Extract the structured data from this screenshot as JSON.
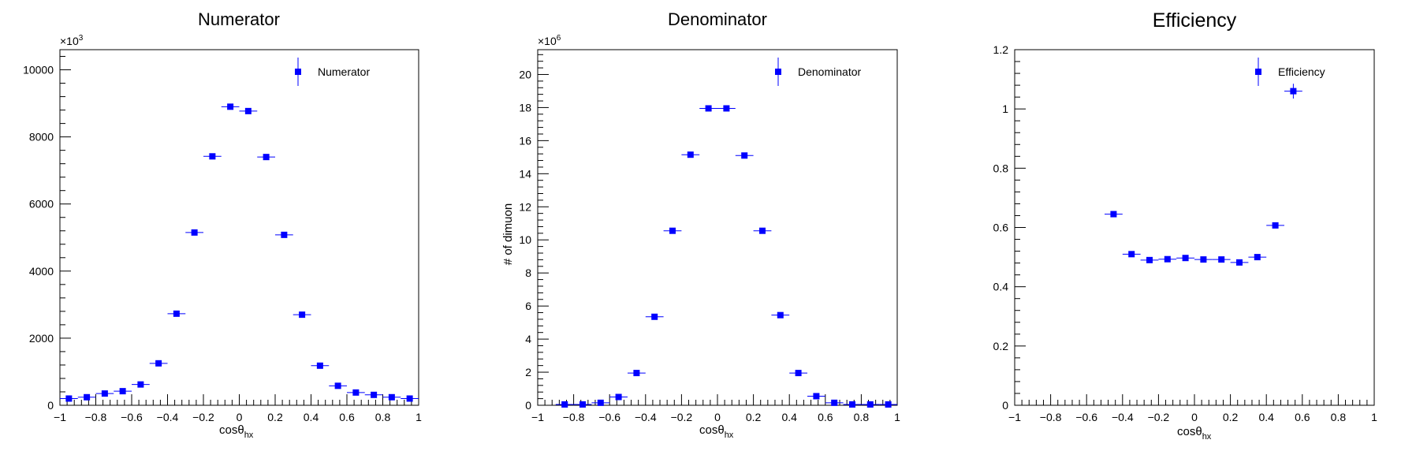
{
  "chart_data": [
    {
      "type": "scatter",
      "title": "Numerator",
      "xlabel": "cosθ",
      "xlabel_sub": "hx",
      "ylabel": "",
      "y_multiplier": "×10",
      "y_multiplier_exp": "3",
      "xlim": [
        -1,
        1
      ],
      "ylim": [
        0,
        10600
      ],
      "xticks": [
        -1,
        -0.8,
        -0.6,
        -0.4,
        -0.2,
        0,
        0.2,
        0.4,
        0.6,
        0.8,
        1
      ],
      "xtick_labels": [
        "−1",
        "−0.8",
        "−0.6",
        "−0.4",
        "−0.2",
        "0",
        "0.2",
        "0.4",
        "0.6",
        "0.8",
        "1"
      ],
      "yticks": [
        0,
        2000,
        4000,
        6000,
        8000,
        10000
      ],
      "ytick_labels": [
        "0",
        "2000",
        "4000",
        "6000",
        "8000",
        "10000"
      ],
      "legend": {
        "label": "Numerator",
        "position": "top-right"
      },
      "bin_half_width": 0.05,
      "series": [
        {
          "name": "Numerator",
          "color": "#0000ff",
          "x": [
            -0.95,
            -0.85,
            -0.75,
            -0.65,
            -0.55,
            -0.45,
            -0.35,
            -0.25,
            -0.15,
            -0.05,
            0.05,
            0.15,
            0.25,
            0.35,
            0.45,
            0.55,
            0.65,
            0.75,
            0.85,
            0.95
          ],
          "y": [
            200,
            240,
            350,
            420,
            620,
            1250,
            2730,
            5150,
            7420,
            8900,
            8770,
            7400,
            5080,
            2700,
            1180,
            580,
            380,
            310,
            240,
            200
          ]
        }
      ]
    },
    {
      "type": "scatter",
      "title": "Denominator",
      "xlabel": "cosθ",
      "xlabel_sub": "hx",
      "ylabel": "# of dimuon",
      "y_multiplier": "×10",
      "y_multiplier_exp": "6",
      "xlim": [
        -1,
        1
      ],
      "ylim": [
        0,
        21.5
      ],
      "xticks": [
        -1,
        -0.8,
        -0.6,
        -0.4,
        -0.2,
        0,
        0.2,
        0.4,
        0.6,
        0.8,
        1
      ],
      "xtick_labels": [
        "−1",
        "−0.8",
        "−0.6",
        "−0.4",
        "−0.2",
        "0",
        "0.2",
        "0.4",
        "0.6",
        "0.8",
        "1"
      ],
      "yticks": [
        0,
        2,
        4,
        6,
        8,
        10,
        12,
        14,
        16,
        18,
        20
      ],
      "ytick_labels": [
        "0",
        "2",
        "4",
        "6",
        "8",
        "10",
        "12",
        "14",
        "16",
        "18",
        "20"
      ],
      "legend": {
        "label": "Denominator",
        "position": "top-right"
      },
      "bin_half_width": 0.05,
      "series": [
        {
          "name": "Denominator",
          "color": "#0000ff",
          "x": [
            -0.85,
            -0.75,
            -0.65,
            -0.55,
            -0.45,
            -0.35,
            -0.25,
            -0.15,
            -0.05,
            0.05,
            0.15,
            0.25,
            0.35,
            0.45,
            0.55,
            0.65,
            0.75,
            0.85,
            0.95
          ],
          "y": [
            0.05,
            0.05,
            0.15,
            0.5,
            1.95,
            5.35,
            10.55,
            15.15,
            17.95,
            17.95,
            15.1,
            10.55,
            5.45,
            1.95,
            0.55,
            0.15,
            0.05,
            0.05,
            0.05
          ]
        }
      ]
    },
    {
      "type": "scatter",
      "title": "Efficiency",
      "xlabel": "cosθ",
      "xlabel_sub": "hx",
      "ylabel": "",
      "y_multiplier": "",
      "y_multiplier_exp": "",
      "xlim": [
        -1,
        1
      ],
      "ylim": [
        0,
        1.2
      ],
      "xticks": [
        -1,
        -0.8,
        -0.6,
        -0.4,
        -0.2,
        0,
        0.2,
        0.4,
        0.6,
        0.8,
        1
      ],
      "xtick_labels": [
        "−1",
        "−0.8",
        "−0.6",
        "−0.4",
        "−0.2",
        "0",
        "0.2",
        "0.4",
        "0.6",
        "0.8",
        "1"
      ],
      "yticks": [
        0,
        0.2,
        0.4,
        0.6,
        0.8,
        1,
        1.2
      ],
      "ytick_labels": [
        "0",
        "0.2",
        "0.4",
        "0.6",
        "0.8",
        "1",
        "1.2"
      ],
      "legend": {
        "label": "Efficiency",
        "position": "top-right"
      },
      "bin_half_width": 0.05,
      "series": [
        {
          "name": "Efficiency",
          "color": "#0000ff",
          "x": [
            -0.45,
            -0.35,
            -0.25,
            -0.15,
            -0.05,
            0.05,
            0.15,
            0.25,
            0.35,
            0.45,
            0.55
          ],
          "y": [
            0.645,
            0.51,
            0.49,
            0.493,
            0.497,
            0.492,
            0.492,
            0.482,
            0.5,
            0.607,
            1.06
          ],
          "y_err": [
            0.006,
            0.006,
            0.006,
            0.006,
            0.006,
            0.006,
            0.006,
            0.006,
            0.006,
            0.008,
            0.025
          ]
        }
      ]
    }
  ]
}
